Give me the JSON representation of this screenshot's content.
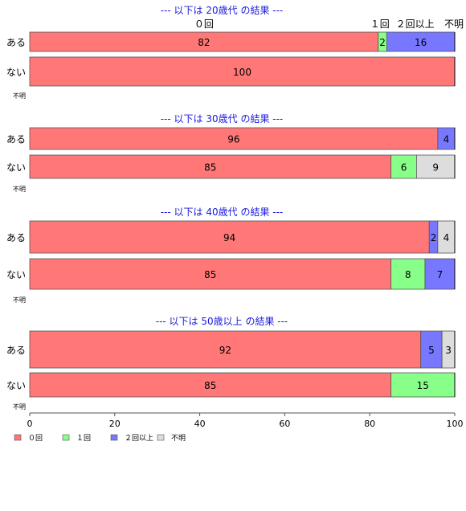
{
  "colors": {
    "title": "#1a1adc",
    "segments": [
      "#ff7777",
      "#88ff88",
      "#7777ff",
      "#dddddd"
    ],
    "axis": "#555555",
    "text": "#000000"
  },
  "chart_data": {
    "type": "bar",
    "orientation": "horizontal",
    "stacked": true,
    "xlim": [
      0,
      100
    ],
    "x_ticks": [
      "0",
      "20",
      "40",
      "60",
      "80",
      "100"
    ],
    "categories": [
      "０回",
      "１回",
      "２回以上",
      "不明"
    ],
    "panels": [
      {
        "title": "--- 以下は 20歳代 の結果 ---",
        "rows": [
          {
            "label": "ある",
            "values": [
              82,
              2,
              16,
              0
            ]
          },
          {
            "label": "ない",
            "values": [
              100,
              0,
              0,
              0
            ]
          },
          {
            "label": "不明",
            "values": [
              0,
              0,
              0,
              0
            ]
          }
        ]
      },
      {
        "title": "--- 以下は 30歳代 の結果 ---",
        "rows": [
          {
            "label": "ある",
            "values": [
              96,
              0,
              4,
              0
            ]
          },
          {
            "label": "ない",
            "values": [
              85,
              6,
              0,
              9
            ]
          },
          {
            "label": "不明",
            "values": [
              0,
              0,
              0,
              0
            ]
          }
        ]
      },
      {
        "title": "--- 以下は 40歳代 の結果 ---",
        "rows": [
          {
            "label": "ある",
            "values": [
              94,
              0,
              2,
              4
            ]
          },
          {
            "label": "ない",
            "values": [
              85,
              8,
              7,
              0
            ]
          },
          {
            "label": "不明",
            "values": [
              0,
              0,
              0,
              0
            ]
          }
        ]
      },
      {
        "title": "--- 以下は 50歳以上 の結果 ---",
        "rows": [
          {
            "label": "ある",
            "values": [
              92,
              0,
              5,
              3
            ]
          },
          {
            "label": "ない",
            "values": [
              85,
              15,
              0,
              0
            ]
          },
          {
            "label": "不明",
            "values": [
              0,
              0,
              0,
              0
            ]
          }
        ]
      }
    ],
    "legend": {
      "placement": "bottom-left",
      "entries": [
        "０回",
        "１回",
        "２回以上",
        "不明"
      ]
    }
  }
}
